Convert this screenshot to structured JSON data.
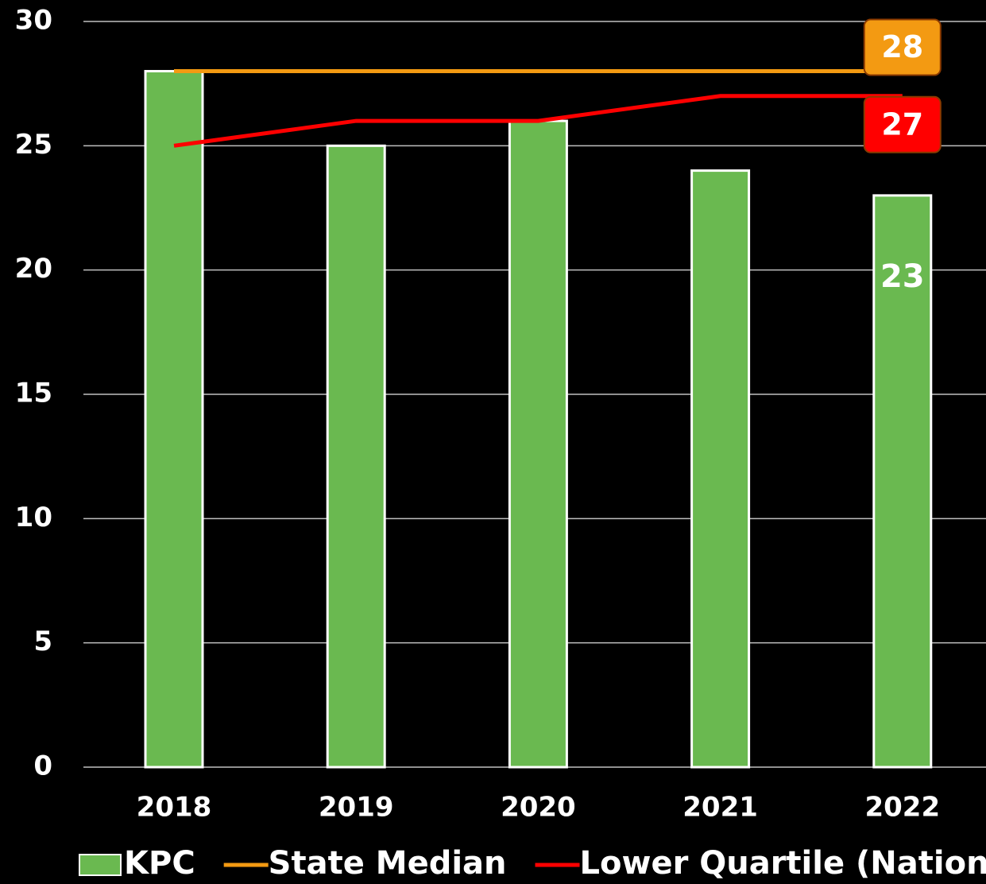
{
  "chart_data": {
    "type": "bar",
    "categories": [
      "2018",
      "2019",
      "2020",
      "2021",
      "2022"
    ],
    "series": [
      {
        "name": "KPC",
        "type": "bar",
        "color": "#6ab950",
        "values": [
          28,
          25,
          26,
          24,
          23
        ]
      },
      {
        "name": "State Median",
        "type": "line",
        "color": "#f39a12",
        "values": [
          28,
          28,
          28,
          28,
          28
        ]
      },
      {
        "name": "Lower Quartile (National)",
        "type": "line",
        "color": "#ff0000",
        "values": [
          25,
          26,
          26,
          27,
          27
        ]
      }
    ],
    "ylim": [
      0,
      30
    ],
    "yticks": [
      0,
      5,
      10,
      15,
      20,
      25,
      30
    ],
    "grid": true,
    "data_labels": "last",
    "legend": "bottom"
  }
}
